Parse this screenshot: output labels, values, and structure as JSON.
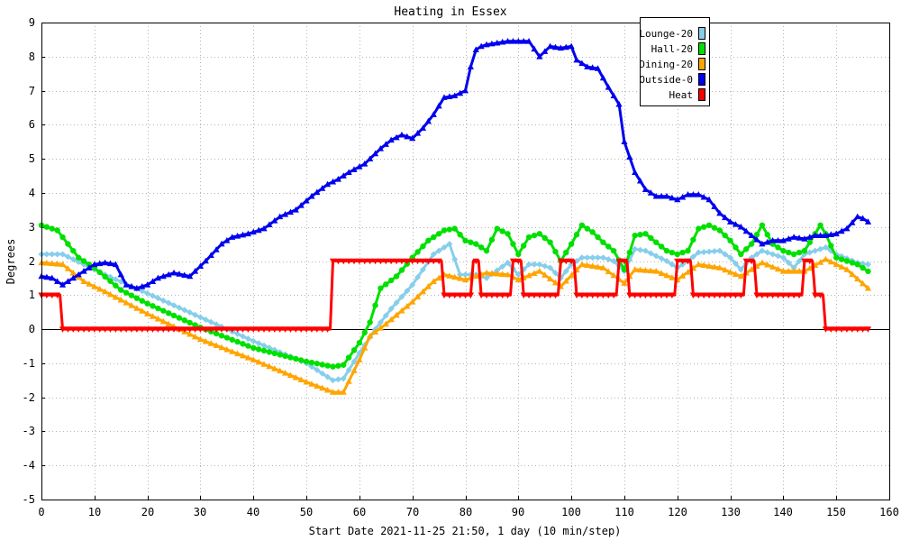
{
  "chart_data": {
    "type": "line",
    "title": "Heating in Essex",
    "xlabel": "Start Date 2021-11-25 21:50, 1 day (10 min/step)",
    "ylabel": "Degrees",
    "xlim": [
      0,
      160
    ],
    "ylim": [
      -5,
      9
    ],
    "x_ticks": [
      0,
      10,
      20,
      30,
      40,
      50,
      60,
      70,
      80,
      90,
      100,
      110,
      120,
      130,
      140,
      150,
      160
    ],
    "y_ticks": [
      -5,
      -4,
      -3,
      -2,
      -1,
      0,
      1,
      2,
      3,
      4,
      5,
      6,
      7,
      8,
      9
    ],
    "grid": true,
    "legend_position": "top-right",
    "series": [
      {
        "name": "Lounge-20",
        "color": "#87ceeb",
        "marker": "diamond",
        "anchors": [
          [
            0,
            2.2
          ],
          [
            4,
            2.2
          ],
          [
            8,
            1.9
          ],
          [
            12,
            1.6
          ],
          [
            20,
            1.05
          ],
          [
            30,
            0.35
          ],
          [
            40,
            -0.35
          ],
          [
            50,
            -1.0
          ],
          [
            55,
            -1.5
          ],
          [
            57,
            -1.45
          ],
          [
            60,
            -0.7
          ],
          [
            63,
            0.0
          ],
          [
            66,
            0.6
          ],
          [
            70,
            1.3
          ],
          [
            72,
            1.75
          ],
          [
            74,
            2.2
          ],
          [
            77,
            2.5
          ],
          [
            79,
            1.6
          ],
          [
            82,
            1.6
          ],
          [
            84,
            1.5
          ],
          [
            88,
            1.95
          ],
          [
            90,
            1.6
          ],
          [
            92,
            1.9
          ],
          [
            94,
            1.9
          ],
          [
            96,
            1.8
          ],
          [
            98,
            1.5
          ],
          [
            100,
            1.9
          ],
          [
            102,
            2.1
          ],
          [
            104,
            2.1
          ],
          [
            106,
            2.1
          ],
          [
            108,
            2.0
          ],
          [
            110,
            1.7
          ],
          [
            112,
            2.35
          ],
          [
            114,
            2.3
          ],
          [
            118,
            2.0
          ],
          [
            120,
            1.8
          ],
          [
            122,
            2.0
          ],
          [
            124,
            2.25
          ],
          [
            128,
            2.3
          ],
          [
            130,
            2.1
          ],
          [
            132,
            1.75
          ],
          [
            134,
            2.1
          ],
          [
            136,
            2.3
          ],
          [
            138,
            2.2
          ],
          [
            140,
            2.1
          ],
          [
            142,
            1.8
          ],
          [
            144,
            2.2
          ],
          [
            146,
            2.3
          ],
          [
            148,
            2.4
          ],
          [
            150,
            2.2
          ],
          [
            154,
            1.95
          ],
          [
            156,
            1.9
          ]
        ]
      },
      {
        "name": "Hall-20",
        "color": "#00e000",
        "marker": "circle",
        "anchors": [
          [
            0,
            3.05
          ],
          [
            3,
            2.9
          ],
          [
            5,
            2.5
          ],
          [
            7,
            2.1
          ],
          [
            10,
            1.8
          ],
          [
            15,
            1.15
          ],
          [
            20,
            0.75
          ],
          [
            30,
            0.05
          ],
          [
            40,
            -0.55
          ],
          [
            50,
            -0.95
          ],
          [
            55,
            -1.1
          ],
          [
            57,
            -1.05
          ],
          [
            60,
            -0.4
          ],
          [
            62,
            0.2
          ],
          [
            64,
            1.2
          ],
          [
            67,
            1.55
          ],
          [
            70,
            2.1
          ],
          [
            73,
            2.6
          ],
          [
            76,
            2.9
          ],
          [
            78,
            2.95
          ],
          [
            80,
            2.6
          ],
          [
            82,
            2.5
          ],
          [
            84,
            2.3
          ],
          [
            86,
            2.95
          ],
          [
            88,
            2.8
          ],
          [
            90,
            2.2
          ],
          [
            92,
            2.7
          ],
          [
            94,
            2.8
          ],
          [
            96,
            2.55
          ],
          [
            98,
            2.0
          ],
          [
            100,
            2.5
          ],
          [
            102,
            3.05
          ],
          [
            104,
            2.85
          ],
          [
            106,
            2.55
          ],
          [
            108,
            2.3
          ],
          [
            110,
            1.75
          ],
          [
            112,
            2.75
          ],
          [
            114,
            2.8
          ],
          [
            118,
            2.3
          ],
          [
            120,
            2.2
          ],
          [
            122,
            2.3
          ],
          [
            124,
            2.95
          ],
          [
            126,
            3.05
          ],
          [
            128,
            2.9
          ],
          [
            130,
            2.6
          ],
          [
            132,
            2.2
          ],
          [
            134,
            2.5
          ],
          [
            136,
            3.05
          ],
          [
            138,
            2.5
          ],
          [
            140,
            2.3
          ],
          [
            142,
            2.2
          ],
          [
            144,
            2.3
          ],
          [
            146,
            2.8
          ],
          [
            147,
            3.05
          ],
          [
            148,
            2.8
          ],
          [
            150,
            2.1
          ],
          [
            154,
            1.9
          ],
          [
            156,
            1.7
          ]
        ]
      },
      {
        "name": "Dining-20",
        "color": "#ffa500",
        "marker": "triangle",
        "anchors": [
          [
            0,
            1.95
          ],
          [
            4,
            1.9
          ],
          [
            8,
            1.4
          ],
          [
            12,
            1.1
          ],
          [
            20,
            0.45
          ],
          [
            30,
            -0.3
          ],
          [
            40,
            -0.9
          ],
          [
            50,
            -1.55
          ],
          [
            55,
            -1.85
          ],
          [
            57,
            -1.85
          ],
          [
            60,
            -0.9
          ],
          [
            62,
            -0.2
          ],
          [
            65,
            0.15
          ],
          [
            70,
            0.8
          ],
          [
            74,
            1.4
          ],
          [
            76,
            1.6
          ],
          [
            80,
            1.45
          ],
          [
            84,
            1.65
          ],
          [
            88,
            1.6
          ],
          [
            90,
            1.45
          ],
          [
            94,
            1.7
          ],
          [
            98,
            1.25
          ],
          [
            102,
            1.9
          ],
          [
            106,
            1.8
          ],
          [
            110,
            1.35
          ],
          [
            112,
            1.75
          ],
          [
            116,
            1.7
          ],
          [
            120,
            1.45
          ],
          [
            124,
            1.9
          ],
          [
            128,
            1.8
          ],
          [
            132,
            1.55
          ],
          [
            136,
            1.95
          ],
          [
            140,
            1.7
          ],
          [
            144,
            1.7
          ],
          [
            148,
            2.05
          ],
          [
            152,
            1.75
          ],
          [
            156,
            1.2
          ]
        ]
      },
      {
        "name": "Outside-0",
        "color": "#0000ee",
        "marker": "triangle",
        "anchors": [
          [
            0,
            1.55
          ],
          [
            2,
            1.5
          ],
          [
            4,
            1.3
          ],
          [
            6,
            1.5
          ],
          [
            8,
            1.7
          ],
          [
            10,
            1.9
          ],
          [
            12,
            1.95
          ],
          [
            14,
            1.9
          ],
          [
            15,
            1.6
          ],
          [
            16,
            1.3
          ],
          [
            18,
            1.2
          ],
          [
            20,
            1.3
          ],
          [
            22,
            1.5
          ],
          [
            25,
            1.65
          ],
          [
            28,
            1.55
          ],
          [
            31,
            2.0
          ],
          [
            34,
            2.5
          ],
          [
            36,
            2.7
          ],
          [
            39,
            2.8
          ],
          [
            42,
            2.95
          ],
          [
            45,
            3.3
          ],
          [
            48,
            3.5
          ],
          [
            51,
            3.9
          ],
          [
            54,
            4.25
          ],
          [
            56,
            4.4
          ],
          [
            58,
            4.6
          ],
          [
            61,
            4.85
          ],
          [
            64,
            5.3
          ],
          [
            66,
            5.55
          ],
          [
            68,
            5.7
          ],
          [
            70,
            5.6
          ],
          [
            72,
            5.9
          ],
          [
            74,
            6.3
          ],
          [
            76,
            6.8
          ],
          [
            78,
            6.85
          ],
          [
            80,
            7.0
          ],
          [
            81,
            7.7
          ],
          [
            82,
            8.2
          ],
          [
            83,
            8.3
          ],
          [
            84,
            8.35
          ],
          [
            86,
            8.4
          ],
          [
            88,
            8.45
          ],
          [
            90,
            8.45
          ],
          [
            92,
            8.45
          ],
          [
            94,
            8.0
          ],
          [
            96,
            8.3
          ],
          [
            98,
            8.25
          ],
          [
            100,
            8.3
          ],
          [
            101,
            7.9
          ],
          [
            103,
            7.7
          ],
          [
            105,
            7.65
          ],
          [
            107,
            7.1
          ],
          [
            109,
            6.6
          ],
          [
            110,
            5.5
          ],
          [
            112,
            4.6
          ],
          [
            114,
            4.1
          ],
          [
            116,
            3.9
          ],
          [
            118,
            3.9
          ],
          [
            120,
            3.8
          ],
          [
            122,
            3.95
          ],
          [
            124,
            3.95
          ],
          [
            126,
            3.8
          ],
          [
            128,
            3.4
          ],
          [
            130,
            3.15
          ],
          [
            132,
            3.0
          ],
          [
            134,
            2.75
          ],
          [
            136,
            2.5
          ],
          [
            138,
            2.6
          ],
          [
            140,
            2.6
          ],
          [
            142,
            2.7
          ],
          [
            144,
            2.65
          ],
          [
            146,
            2.75
          ],
          [
            148,
            2.75
          ],
          [
            150,
            2.8
          ],
          [
            152,
            2.95
          ],
          [
            154,
            3.3
          ],
          [
            155,
            3.25
          ],
          [
            156,
            3.15
          ]
        ]
      },
      {
        "name": "Heat",
        "color": "#ff0000",
        "marker": "triangle-down",
        "anchors": [
          [
            0,
            1.0
          ],
          [
            3.5,
            1.0
          ],
          [
            4,
            0.0
          ],
          [
            54.5,
            0.0
          ],
          [
            55,
            2.0
          ],
          [
            75.5,
            2.0
          ],
          [
            76,
            1.0
          ],
          [
            81,
            1.0
          ],
          [
            81.5,
            2.0
          ],
          [
            82.5,
            2.0
          ],
          [
            83,
            1.0
          ],
          [
            88.5,
            1.0
          ],
          [
            89,
            2.0
          ],
          [
            90.5,
            2.0
          ],
          [
            91,
            1.0
          ],
          [
            97.5,
            1.0
          ],
          [
            98,
            2.0
          ],
          [
            100.5,
            2.0
          ],
          [
            101,
            1.0
          ],
          [
            108.5,
            1.0
          ],
          [
            109,
            2.0
          ],
          [
            110.5,
            2.0
          ],
          [
            111,
            1.0
          ],
          [
            119.5,
            1.0
          ],
          [
            120,
            2.0
          ],
          [
            122.5,
            2.0
          ],
          [
            123,
            1.0
          ],
          [
            132.5,
            1.0
          ],
          [
            133,
            2.0
          ],
          [
            134.5,
            2.0
          ],
          [
            135,
            1.0
          ],
          [
            143.5,
            1.0
          ],
          [
            144,
            2.0
          ],
          [
            145.5,
            2.0
          ],
          [
            146,
            1.0
          ],
          [
            147.5,
            1.0
          ],
          [
            148,
            0.0
          ],
          [
            156,
            0.0
          ]
        ]
      }
    ]
  }
}
